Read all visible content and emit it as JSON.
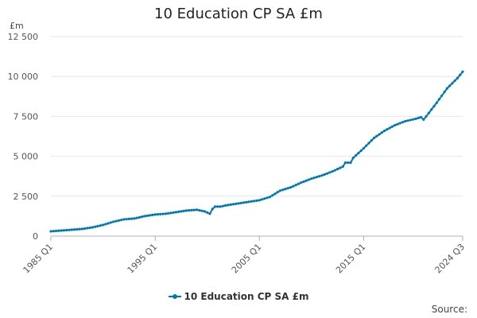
{
  "chart_data": {
    "type": "line",
    "title": "10 Education CP SA £m",
    "y_unit": "£m",
    "ylim": [
      0,
      12500
    ],
    "y_ticks": [
      0,
      2500,
      5000,
      7500,
      10000,
      12500
    ],
    "y_tick_labels": [
      "0",
      "2 500",
      "5 000",
      "7 500",
      "10 000",
      "12 500"
    ],
    "x_tick_labels": [
      "1985 Q1",
      "1995 Q1",
      "2005 Q1",
      "2015 Q1",
      "2024 Q3"
    ],
    "x_range": [
      "1985 Q1",
      "2024 Q3"
    ],
    "grid": "horizontal",
    "legend_position": "bottom",
    "source_label": "Source:",
    "series": [
      {
        "name": "10 Education CP SA £m",
        "color": "#0078b4",
        "x": [
          "1985 Q1",
          "1986 Q1",
          "1987 Q1",
          "1988 Q1",
          "1989 Q1",
          "1990 Q1",
          "1991 Q1",
          "1992 Q1",
          "1993 Q1",
          "1994 Q1",
          "1995 Q1",
          "1996 Q1",
          "1997 Q1",
          "1998 Q1",
          "1999 Q1",
          "1999 Q4",
          "2000 Q2",
          "2000 Q3",
          "2000 Q4",
          "2001 Q2",
          "2002 Q1",
          "2003 Q1",
          "2004 Q1",
          "2005 Q1",
          "2006 Q1",
          "2007 Q1",
          "2008 Q1",
          "2009 Q1",
          "2010 Q1",
          "2011 Q1",
          "2012 Q1",
          "2013 Q1",
          "2013 Q2",
          "2013 Q4",
          "2014 Q1",
          "2015 Q1",
          "2016 Q1",
          "2017 Q1",
          "2018 Q1",
          "2019 Q1",
          "2020 Q1",
          "2020 Q3",
          "2020 Q4",
          "2021 Q1",
          "2022 Q1",
          "2023 Q1",
          "2024 Q1",
          "2024 Q3"
        ],
        "y": [
          300,
          350,
          400,
          450,
          550,
          700,
          900,
          1050,
          1100,
          1250,
          1350,
          1400,
          1500,
          1600,
          1650,
          1550,
          1400,
          1700,
          1850,
          1850,
          1950,
          2050,
          2150,
          2250,
          2450,
          2850,
          3050,
          3350,
          3600,
          3800,
          4050,
          4350,
          4600,
          4600,
          4900,
          5500,
          6150,
          6600,
          6950,
          7200,
          7350,
          7450,
          7300,
          7500,
          8350,
          9250,
          9900,
          10300
        ]
      }
    ]
  }
}
